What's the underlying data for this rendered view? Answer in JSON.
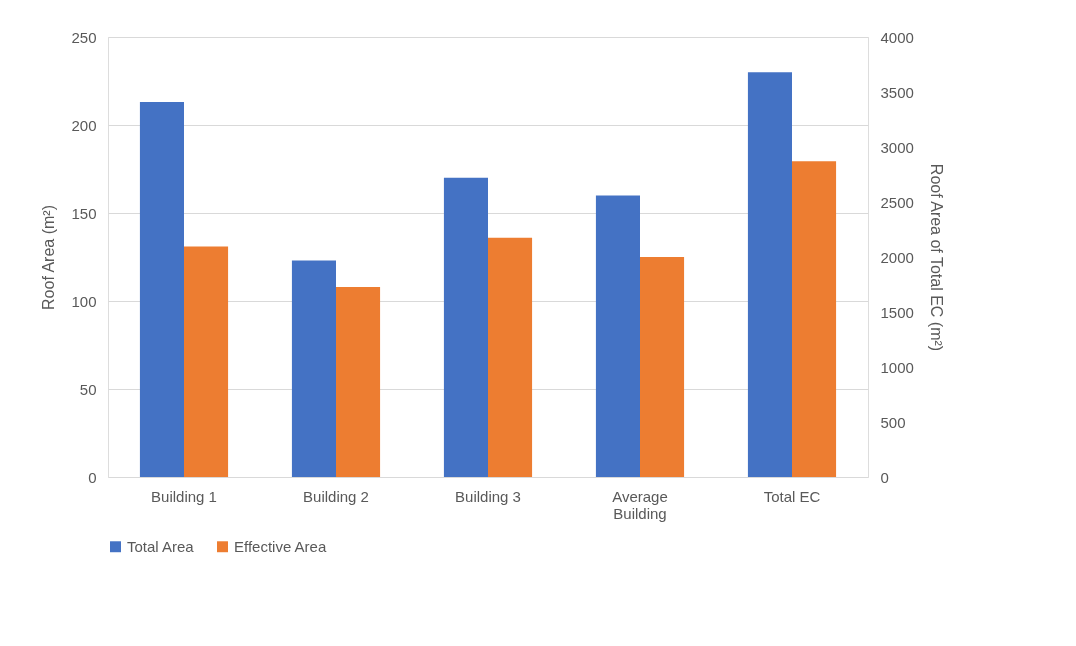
{
  "chart_data": {
    "type": "bar",
    "categories": [
      "Building 1",
      "Building 2",
      "Building 3",
      "Average Building",
      "Total EC"
    ],
    "series": [
      {
        "name": "Total Area",
        "color": "#4472c4",
        "values": [
          213,
          123,
          170,
          160,
          null
        ]
      },
      {
        "name": "Effective Area",
        "color": "#ed7d31",
        "values": [
          131,
          108,
          136,
          125,
          null
        ]
      },
      {
        "color": "#4472c4",
        "axis": "y2",
        "values": [
          null,
          null,
          null,
          null,
          3680
        ]
      },
      {
        "color": "#ed7d31",
        "axis": "y2",
        "values": [
          null,
          null,
          null,
          null,
          2870
        ]
      }
    ],
    "ylabel": "Roof Area (m²)",
    "y2label": "Roof Area of Total EC (m²)",
    "ylim": [
      0,
      250
    ],
    "yticks": [
      0,
      50,
      100,
      150,
      200,
      250
    ],
    "y2lim": [
      0,
      4000
    ],
    "y2ticks": [
      0,
      500,
      1000,
      1500,
      2000,
      2500,
      3000,
      3500,
      4000
    ],
    "grid": "y",
    "legend": "bottom"
  }
}
